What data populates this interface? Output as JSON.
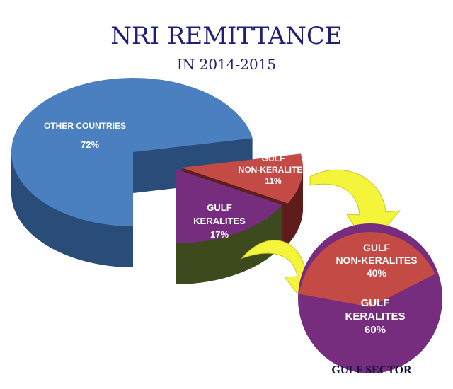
{
  "chart_data": [
    {
      "type": "pie",
      "title": "NRI REMITTANCE",
      "subtitle": "IN 2014-2015",
      "style": "3d-exploded",
      "slices": [
        {
          "label": "OTHER COUNTRIES",
          "value": 72,
          "value_label": "72%",
          "color": "#4a7fc0",
          "side_color": "#2a4c78"
        },
        {
          "label_lines": [
            "GULF",
            "NON-KERALITES"
          ],
          "value": 11,
          "value_label": "11%",
          "color": "#c34a45",
          "side_color": "#5e1d1c"
        },
        {
          "label_lines": [
            "GULF",
            "KERALITES"
          ],
          "value": 17,
          "value_label": "17%",
          "color": "#772d7e",
          "side_color": "#3d4a1e"
        }
      ]
    },
    {
      "type": "pie",
      "title": "GULF SECTOR",
      "slices": [
        {
          "label_lines": [
            "GULF",
            "NON-KERALITES"
          ],
          "value": 40,
          "value_label": "40%",
          "color": "#c34a45"
        },
        {
          "label_lines": [
            "GULF",
            "KERALITES"
          ],
          "value": 60,
          "value_label": "60%",
          "color": "#772d7e"
        }
      ]
    }
  ],
  "arrow_color": "#f4f43a"
}
